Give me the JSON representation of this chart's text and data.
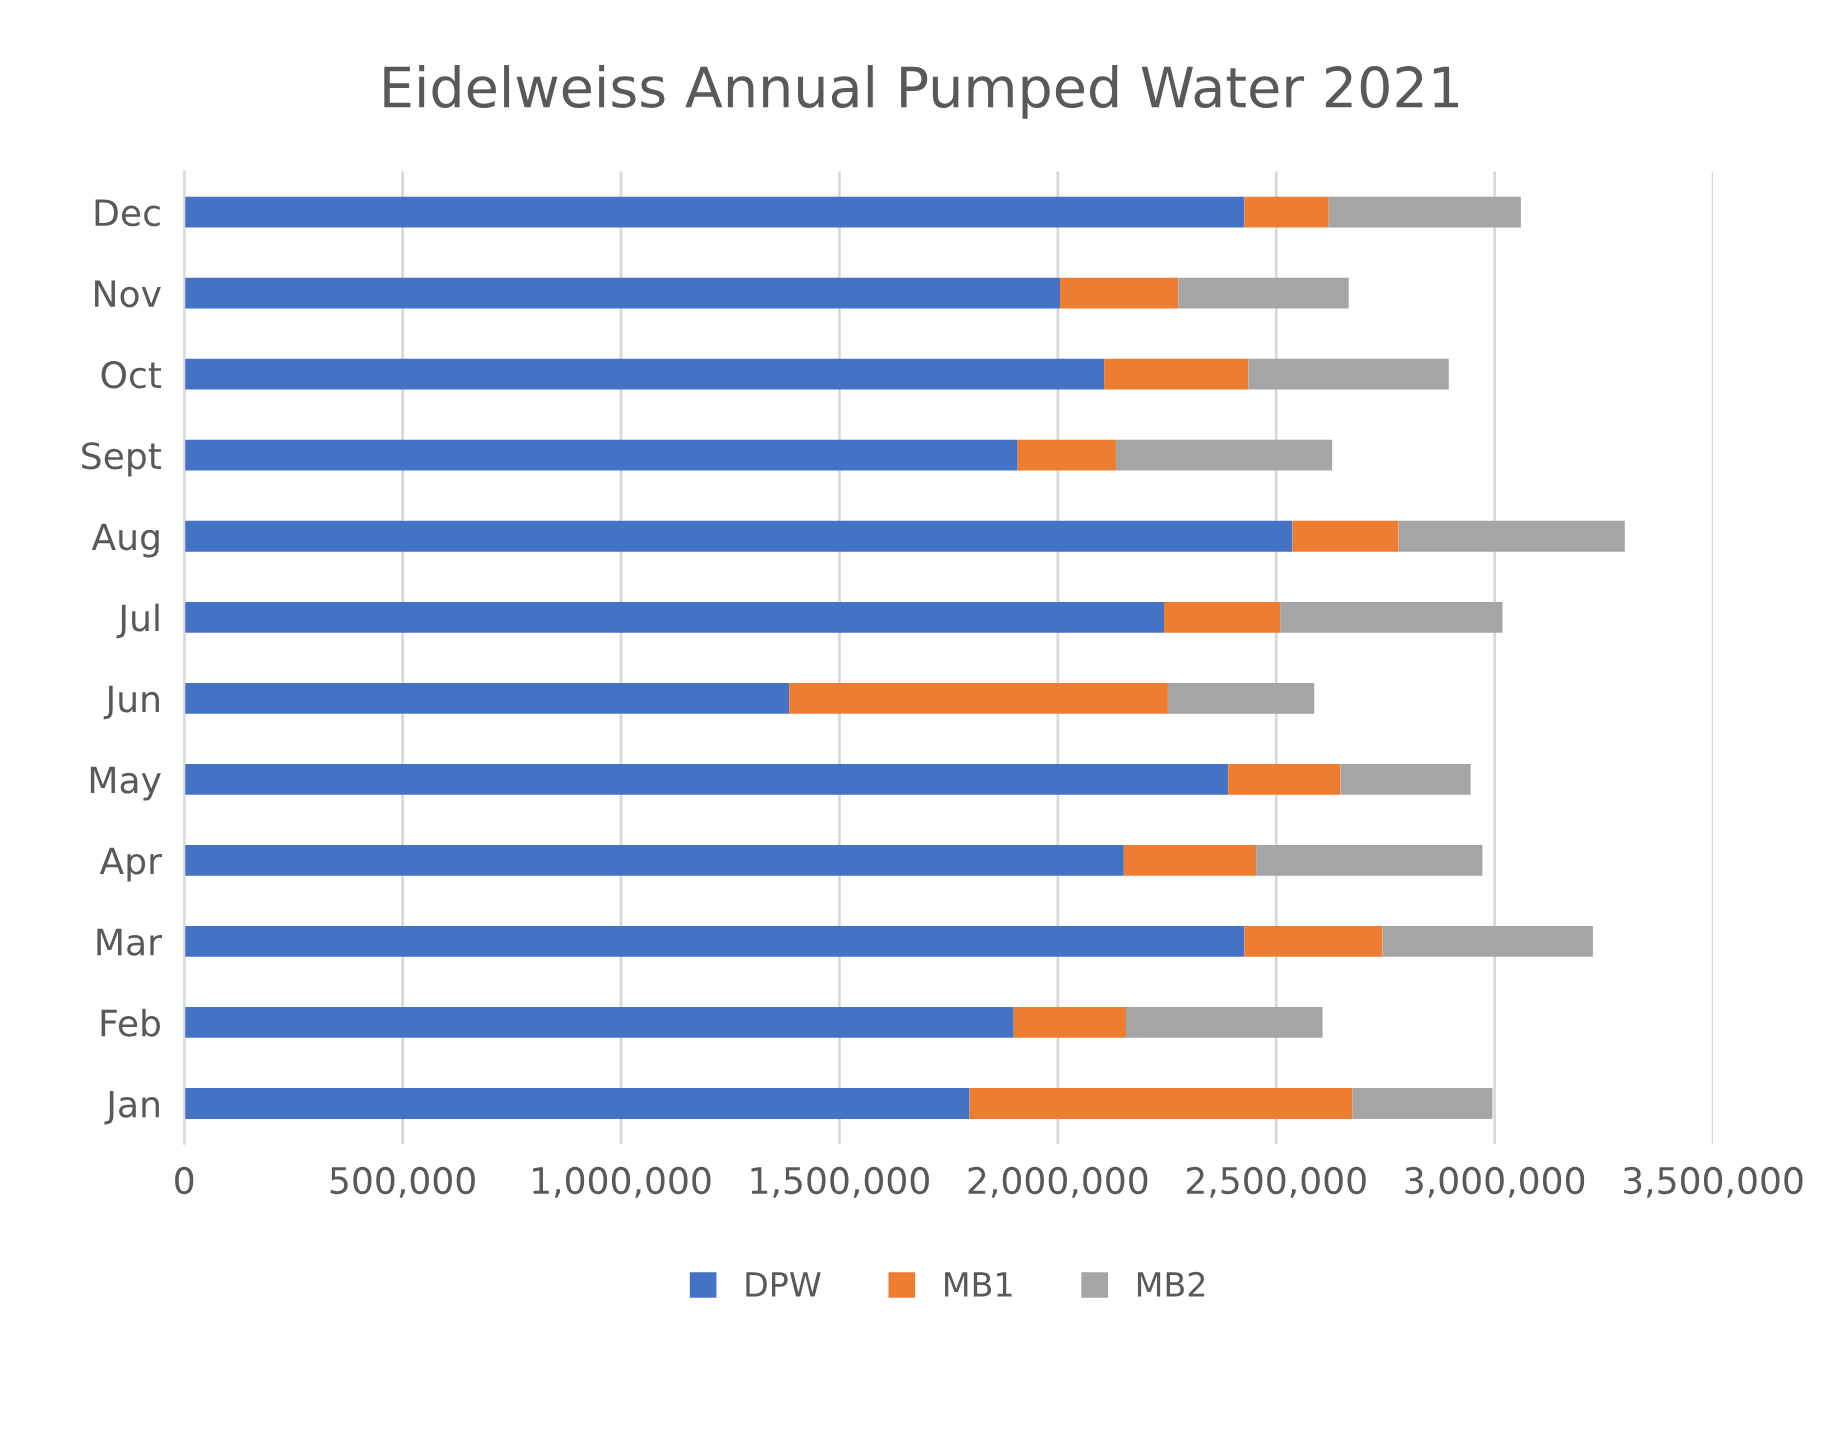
{
  "chart_data": {
    "type": "bar",
    "orientation": "horizontal",
    "stacked": true,
    "title": "Eidelweiss Annual Pumped Water 2021",
    "categories": [
      "Dec",
      "Nov",
      "Oct",
      "Sept",
      "Aug",
      "Jul",
      "Jun",
      "May",
      "Apr",
      "Mar",
      "Feb",
      "Jan"
    ],
    "series": [
      {
        "name": "DPW",
        "color": "#4472c4",
        "values": [
          2427000,
          2005000,
          2106000,
          1908000,
          2537000,
          2243000,
          1385000,
          2390000,
          2151000,
          2427000,
          1899000,
          1798000
        ]
      },
      {
        "name": "MB1",
        "color": "#ed7d31",
        "values": [
          193000,
          271000,
          330000,
          225000,
          243000,
          266000,
          867000,
          257000,
          303000,
          316000,
          257000,
          876000
        ]
      },
      {
        "name": "MB2",
        "color": "#a5a5a5",
        "values": [
          440000,
          390000,
          459000,
          495000,
          518000,
          509000,
          335000,
          298000,
          518000,
          482000,
          450000,
          321000
        ]
      }
    ],
    "xlim": [
      0,
      3500000
    ],
    "xticks": [
      0,
      {
        "value": 500000,
        "label": "500,000"
      },
      {
        "value": 1000000,
        "label": "1,000,000"
      },
      {
        "value": 1500000,
        "label": "1,500,000"
      },
      {
        "value": 2000000,
        "label": "2,000,000"
      },
      {
        "value": 2500000,
        "label": "2,500,000"
      },
      {
        "value": 3000000,
        "label": "3,000,000"
      },
      {
        "value": 3500000,
        "label": "3,500,000"
      }
    ],
    "grid": "x",
    "legend": "bottom"
  }
}
